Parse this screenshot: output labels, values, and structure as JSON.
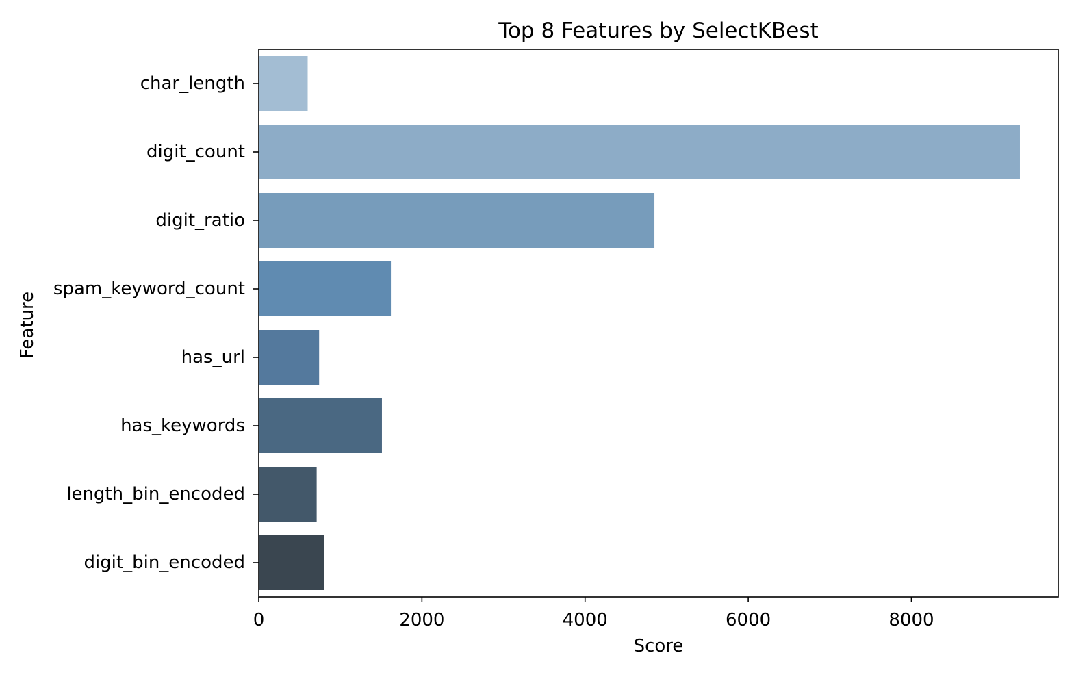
{
  "chart_data": {
    "type": "bar",
    "orientation": "horizontal",
    "title": "Top 8 Features by SelectKBest",
    "xlabel": "Score",
    "ylabel": "Feature",
    "categories": [
      "char_length",
      "digit_count",
      "digit_ratio",
      "spam_keyword_count",
      "has_url",
      "has_keywords",
      "length_bin_encoded",
      "digit_bin_encoded"
    ],
    "values": [
      600,
      9330,
      4850,
      1620,
      740,
      1510,
      710,
      800
    ],
    "xlim": [
      0,
      9800
    ],
    "xticks": [
      0,
      2000,
      4000,
      6000,
      8000
    ],
    "grid": false,
    "legend": "none",
    "colors": [
      "#a3bdd3",
      "#8dacc7",
      "#779cbb",
      "#608bb1",
      "#54799d",
      "#4a6882",
      "#43586a",
      "#3a4650"
    ]
  }
}
